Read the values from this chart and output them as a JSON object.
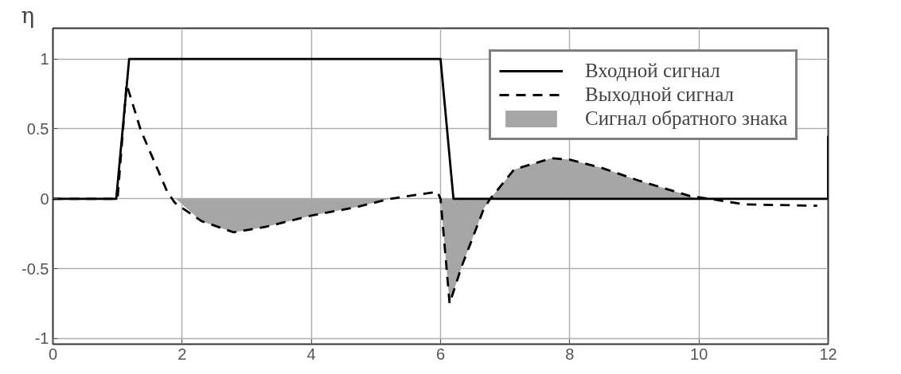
{
  "chart_data": {
    "type": "line",
    "ylabel": "η",
    "xlim": [
      0,
      12
    ],
    "ylim": [
      -1.04,
      1.22
    ],
    "xticks": [
      0,
      2,
      4,
      6,
      8,
      10,
      12
    ],
    "yticks": [
      -1,
      -0.5,
      0,
      0.5,
      1
    ],
    "grid": true,
    "legend": "top right",
    "series": [
      {
        "name": "Входной сигнал",
        "color": "#000000",
        "line_style": "solid",
        "x": [
          0,
          0.98,
          1.18,
          6.0,
          6.2,
          12,
          12
        ],
        "values": [
          0,
          0,
          1,
          1,
          0,
          0,
          0.45
        ]
      },
      {
        "name": "Выходной сигнал",
        "color": "#000000",
        "line_style": "dashed",
        "x": [
          0,
          1.0,
          1.14,
          1.36,
          1.77,
          1.89,
          2.3,
          2.8,
          3.3,
          4.0,
          4.69,
          5.22,
          5.95,
          6.0,
          6.14,
          6.33,
          6.67,
          6.77,
          7.14,
          7.72,
          8.0,
          8.5,
          9.07,
          9.86,
          10.3,
          10.7,
          11.83
        ],
        "values": [
          0,
          0,
          0.82,
          0.49,
          0.05,
          -0.03,
          -0.16,
          -0.24,
          -0.2,
          -0.12,
          -0.06,
          0,
          0.05,
          0,
          -0.75,
          -0.48,
          -0.07,
          0,
          0.21,
          0.29,
          0.28,
          0.22,
          0.13,
          0.02,
          -0.01,
          -0.04,
          -0.05
        ]
      },
      {
        "name": "Сигнал обратного знака",
        "type": "area",
        "color": "#a6a6a6",
        "x": [
          1.9,
          2.3,
          2.8,
          3.3,
          4.0,
          4.69,
          5.22,
          null,
          6.0,
          6.14,
          6.33,
          6.67,
          6.77,
          null,
          6.77,
          7.14,
          7.72,
          8.0,
          8.5,
          9.07,
          9.86,
          9.95
        ],
        "values": [
          0,
          -0.16,
          -0.24,
          -0.2,
          -0.12,
          -0.06,
          0,
          null,
          0,
          -0.75,
          -0.48,
          -0.07,
          0,
          null,
          0,
          0.21,
          0.29,
          0.28,
          0.22,
          0.13,
          0.02,
          0
        ]
      }
    ]
  }
}
